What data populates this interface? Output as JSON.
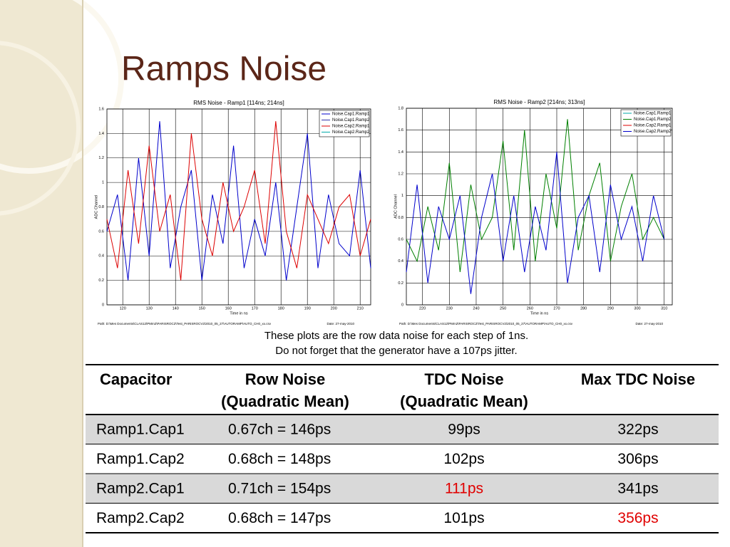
{
  "title": "Ramps Noise",
  "chart_data": [
    {
      "type": "line",
      "title": "RMS Noise - Ramp1 [114ns; 214ns]",
      "xlabel": "Time in ns",
      "ylabel": "ADC Channel",
      "footer_path": "Path: D:\\Mes Documents\\CLAS12\\PMm2\\PARISROC2\\Test_PARISROCV2\\2010_05_27\\AUTORAMP\\AUTO_CH0_xx.csv",
      "footer_date": "Date: 27-may-2010",
      "x": [
        114,
        118,
        122,
        126,
        130,
        134,
        138,
        142,
        146,
        150,
        154,
        158,
        162,
        166,
        170,
        174,
        178,
        182,
        186,
        190,
        194,
        198,
        202,
        206,
        210,
        214
      ],
      "xlim": [
        114,
        214
      ],
      "xticks": [
        120,
        130,
        140,
        150,
        160,
        170,
        180,
        190,
        200,
        210
      ],
      "ylim": [
        0,
        1.6
      ],
      "yticks": [
        0,
        0.2,
        0.4,
        0.6,
        0.8,
        1,
        1.2,
        1.4,
        1.6
      ],
      "grid": true,
      "legend": "upper right",
      "series": [
        {
          "name": "Noise.Cap1.Ramp1",
          "color": "#0000cc",
          "values": [
            0.6,
            0.9,
            0.2,
            1.2,
            0.4,
            1.5,
            0.3,
            0.8,
            1.1,
            0.2,
            0.9,
            0.5,
            1.3,
            0.3,
            0.7,
            0.4,
            1.0,
            0.2,
            0.8,
            1.4,
            0.3,
            0.9,
            0.5,
            0.4,
            1.1,
            0.3
          ]
        },
        {
          "name": "Noise.Cap1.Ramp2",
          "color": "#3333aa",
          "values": [
            null,
            null,
            null,
            null,
            null,
            null,
            null,
            null,
            null,
            null,
            null,
            null,
            null,
            null,
            null,
            null,
            null,
            null,
            null,
            null,
            null,
            null,
            null,
            null,
            null,
            null
          ]
        },
        {
          "name": "Noise.Cap2.Ramp1",
          "color": "#dd0000",
          "values": [
            0.7,
            0.3,
            1.1,
            0.5,
            1.3,
            0.6,
            0.9,
            0.2,
            1.4,
            0.7,
            0.4,
            1.0,
            0.6,
            0.8,
            1.1,
            0.5,
            1.5,
            0.6,
            0.3,
            0.9,
            0.7,
            0.5,
            0.8,
            0.9,
            0.4,
            0.7
          ]
        },
        {
          "name": "Noise.Cap2.Ramp2",
          "color": "#00aaaa",
          "values": [
            null,
            null,
            null,
            null,
            null,
            null,
            null,
            null,
            null,
            null,
            null,
            null,
            null,
            null,
            null,
            null,
            null,
            null,
            null,
            null,
            null,
            null,
            null,
            null,
            null,
            null
          ]
        }
      ]
    },
    {
      "type": "line",
      "title": "RMS Noise - Ramp2 [214ns; 313ns]",
      "xlabel": "Time in ns",
      "ylabel": "ADC Channel",
      "footer_path": "Path: D:\\Mes Documents\\CLAS12\\PMm2\\PARISROC2\\Test_PARISROCV2\\2010_05_27\\AUTORAMP\\AUTO_CH0_xx.csv",
      "footer_date": "Date: 27-may-2010",
      "x": [
        214,
        218,
        222,
        226,
        230,
        234,
        238,
        242,
        246,
        250,
        254,
        258,
        262,
        266,
        270,
        274,
        278,
        282,
        286,
        290,
        294,
        298,
        302,
        306,
        310
      ],
      "xlim": [
        214,
        313
      ],
      "xticks": [
        220,
        230,
        240,
        250,
        260,
        270,
        280,
        290,
        300,
        310
      ],
      "ylim": [
        0,
        1.8
      ],
      "yticks": [
        0,
        0.2,
        0.4,
        0.6,
        0.8,
        1,
        1.2,
        1.4,
        1.6,
        1.8
      ],
      "grid": true,
      "legend": "upper right",
      "series": [
        {
          "name": "Noise.Cap1.Ramp1",
          "color": "#00aaaa",
          "values": [
            null,
            null,
            null,
            null,
            null,
            null,
            null,
            null,
            null,
            null,
            null,
            null,
            null,
            null,
            null,
            null,
            null,
            null,
            null,
            null,
            null,
            null,
            null,
            null,
            null
          ]
        },
        {
          "name": "Noise.Cap1.Ramp2",
          "color": "#008000",
          "values": [
            0.6,
            0.4,
            0.9,
            0.5,
            1.3,
            0.3,
            1.1,
            0.6,
            0.8,
            1.5,
            0.5,
            1.6,
            0.4,
            1.2,
            0.7,
            1.7,
            0.5,
            1.0,
            1.3,
            0.4,
            0.9,
            1.2,
            0.6,
            0.8,
            0.6
          ]
        },
        {
          "name": "Noise.Cap2.Ramp1",
          "color": "#dd0000",
          "values": [
            null,
            null,
            null,
            null,
            null,
            null,
            null,
            null,
            null,
            null,
            null,
            null,
            null,
            null,
            null,
            null,
            null,
            null,
            null,
            null,
            null,
            null,
            null,
            null,
            null
          ]
        },
        {
          "name": "Noise.Cap2.Ramp2",
          "color": "#0000cc",
          "values": [
            0.3,
            1.1,
            0.2,
            0.9,
            0.6,
            1.0,
            0.1,
            0.8,
            1.2,
            0.4,
            1.0,
            0.3,
            0.9,
            0.5,
            1.4,
            0.2,
            0.8,
            1.0,
            0.3,
            1.1,
            0.6,
            0.9,
            0.4,
            1.0,
            0.6
          ]
        }
      ]
    }
  ],
  "caption": [
    "These plots are the row data noise for each step of 1ns.",
    "Do not forget that the generator have a 107ps jitter."
  ],
  "table": {
    "header": [
      [
        "Capacitor"
      ],
      [
        "Row Noise",
        "(Quadratic Mean)"
      ],
      [
        "TDC Noise",
        "(Quadratic Mean)"
      ],
      [
        "Max TDC Noise"
      ]
    ],
    "rows": [
      [
        "Ramp1.Cap1",
        "0.67ch = 146ps",
        "99ps",
        "322ps"
      ],
      [
        "Ramp1.Cap2",
        "0.68ch = 148ps",
        "102ps",
        "306ps"
      ],
      [
        "Ramp2.Cap1",
        "0.71ch = 154ps",
        "111ps",
        "341ps"
      ],
      [
        "Ramp2.Cap2",
        "0.68ch = 147ps",
        "101ps",
        "356ps"
      ]
    ],
    "highlight_color": "#e00000",
    "highlighted": [
      [
        2,
        2
      ],
      [
        3,
        3
      ]
    ]
  }
}
